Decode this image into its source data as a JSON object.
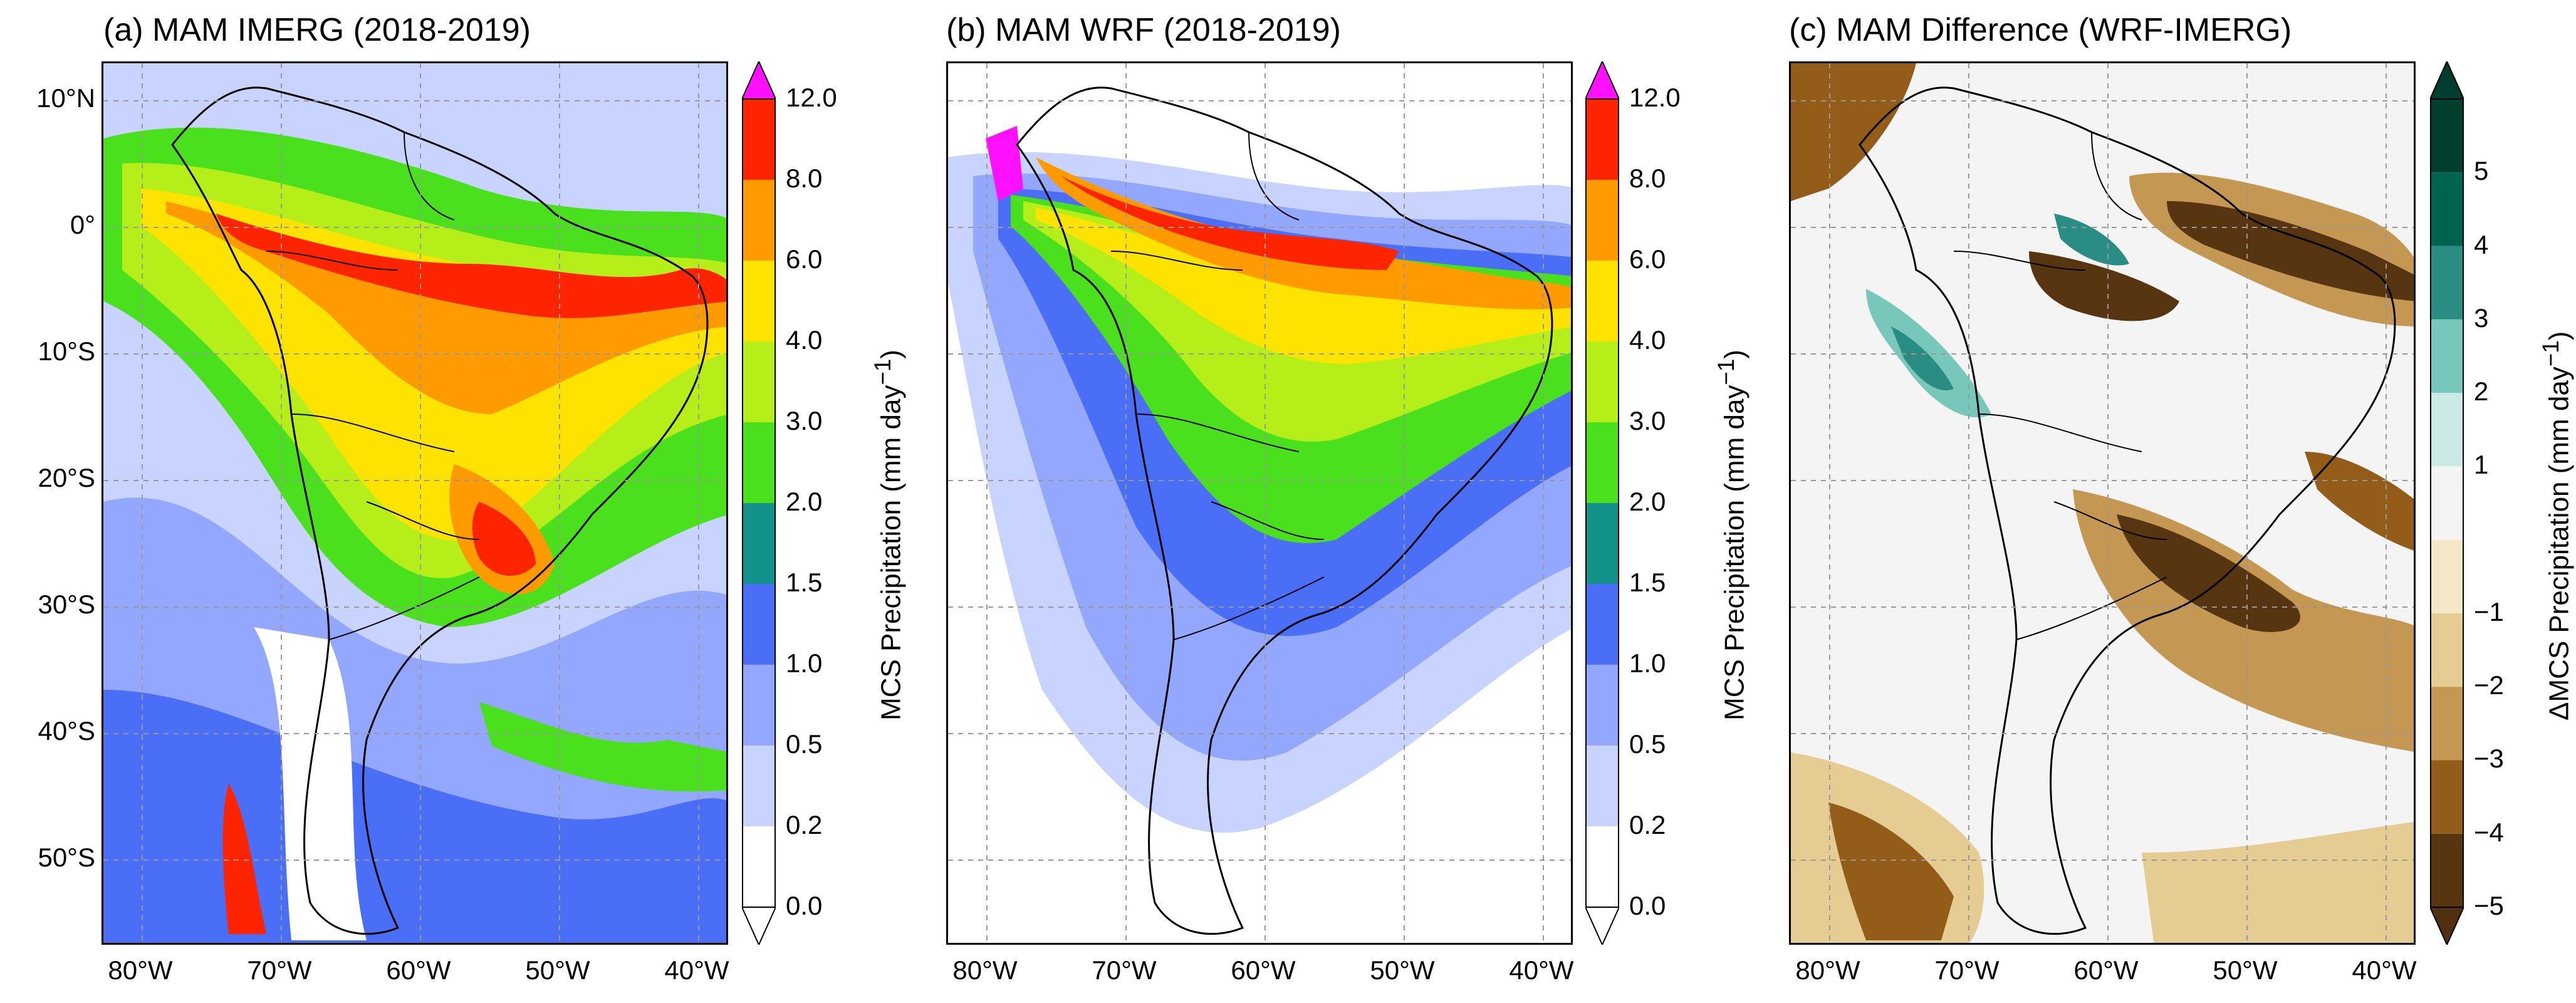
{
  "panels": [
    {
      "title": "(a) MAM IMERG (2018-2019)"
    },
    {
      "title": "(b) MAM WRF (2018-2019)"
    },
    {
      "title": "(c) MAM Difference (WRF-IMERG)"
    }
  ],
  "lat_ticks": [
    "10°N",
    "0°",
    "10°S",
    "20°S",
    "30°S",
    "40°S",
    "50°S"
  ],
  "lon_ticks": [
    "80°W",
    "70°W",
    "60°W",
    "50°W",
    "40°W"
  ],
  "colorbar_precip": {
    "label": "MCS Precipitation (mm day",
    "label_sup": "−1",
    "label_end": ")",
    "ticks": [
      "0.0",
      "0.2",
      "0.5",
      "1.0",
      "1.5",
      "2.0",
      "3.0",
      "4.0",
      "6.0",
      "8.0",
      "12.0"
    ],
    "colors": [
      "#ffffff",
      "#c8d4ff",
      "#93a7ff",
      "#4a6ef5",
      "#12928a",
      "#4be01e",
      "#b6ee1a",
      "#ffe300",
      "#ff9a00",
      "#ff2400"
    ],
    "extend_max_color": "#ff10ff"
  },
  "colorbar_diff": {
    "label": "ΔMCS Precipitation (mm day",
    "label_sup": "−1",
    "label_end": ")",
    "ticks": [
      "−5",
      "−4",
      "−3",
      "−2",
      "−1",
      "1",
      "2",
      "3",
      "4",
      "5"
    ],
    "colors": [
      "#563510",
      "#935c18",
      "#c49752",
      "#e4cc92",
      "#f4e8c8",
      "#f4f4f4",
      "#cbeae5",
      "#78c7bb",
      "#2a8d83",
      "#006350",
      "#003e2e"
    ],
    "extend_min_color": "#503010",
    "extend_max_color": "#003c30"
  }
}
